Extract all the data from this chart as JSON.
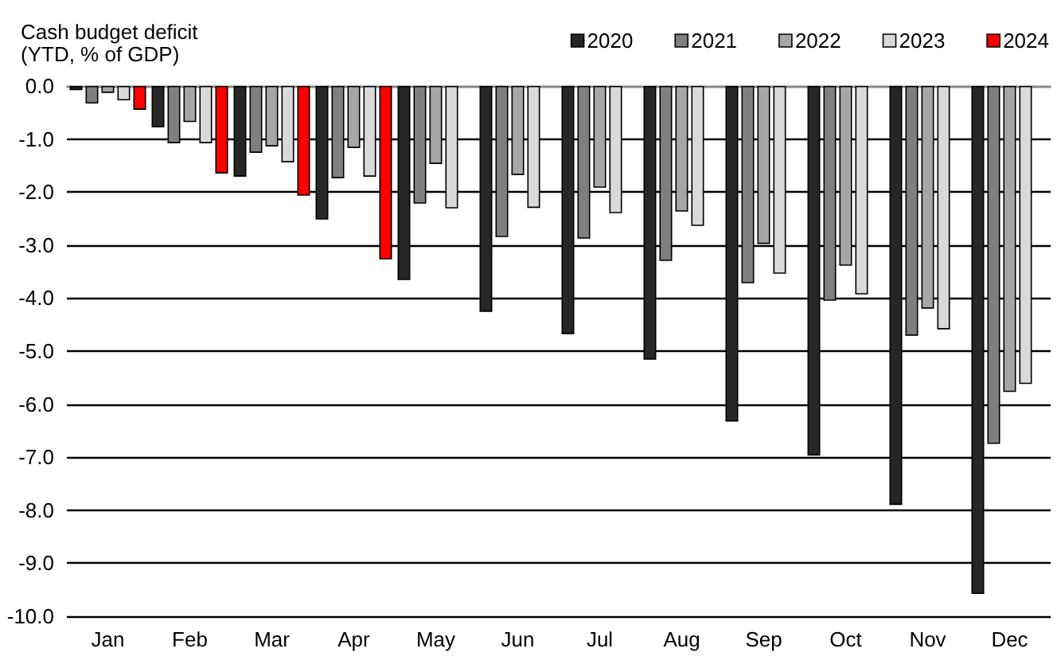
{
  "chart_data": {
    "type": "bar",
    "title": "Cash budget deficit\n(YTD, % of GDP)",
    "categories": [
      "Jan",
      "Feb",
      "Mar",
      "Apr",
      "May",
      "Jun",
      "Jul",
      "Aug",
      "Sep",
      "Oct",
      "Nov",
      "Dec"
    ],
    "series": [
      {
        "name": "2020",
        "color": "#262626",
        "values": [
          -0.08,
          -0.78,
          -1.71,
          -2.52,
          -3.66,
          -4.26,
          -4.68,
          -5.16,
          -6.33,
          -6.97,
          -7.9,
          -9.58
        ]
      },
      {
        "name": "2021",
        "color": "#7f7f7f",
        "values": [
          -0.33,
          -1.08,
          -1.26,
          -1.74,
          -2.22,
          -2.85,
          -2.88,
          -3.3,
          -3.72,
          -4.05,
          -4.71,
          -6.75
        ]
      },
      {
        "name": "2022",
        "color": "#a6a6a6",
        "values": [
          -0.13,
          -0.68,
          -1.14,
          -1.17,
          -1.47,
          -1.68,
          -1.92,
          -2.37,
          -2.98,
          -3.39,
          -4.2,
          -5.77
        ]
      },
      {
        "name": "2023",
        "color": "#d9d9d9",
        "values": [
          -0.27,
          -1.08,
          -1.44,
          -1.71,
          -2.31,
          -2.3,
          -2.4,
          -2.64,
          -3.54,
          -3.93,
          -4.59,
          -5.62
        ]
      },
      {
        "name": "2024",
        "color": "#ff0000",
        "values": [
          -0.45,
          -1.65,
          -2.07,
          -3.27,
          null,
          null,
          null,
          null,
          null,
          null,
          null,
          null
        ]
      }
    ],
    "ylim": [
      -10,
      0
    ],
    "yticks": [
      {
        "value": 0,
        "label": "0.0"
      },
      {
        "value": -1,
        "label": "-1.0"
      },
      {
        "value": -2,
        "label": "-2.0"
      },
      {
        "value": -3,
        "label": "-3.0"
      },
      {
        "value": -4,
        "label": "-4.0"
      },
      {
        "value": -5,
        "label": "-5.0"
      },
      {
        "value": -6,
        "label": "-6.0"
      },
      {
        "value": -7,
        "label": "-7.0"
      },
      {
        "value": -8,
        "label": "-8.0"
      },
      {
        "value": -9,
        "label": "-9.0"
      },
      {
        "value": -10,
        "label": "-10.0"
      }
    ],
    "grid": true,
    "legend": "top"
  }
}
